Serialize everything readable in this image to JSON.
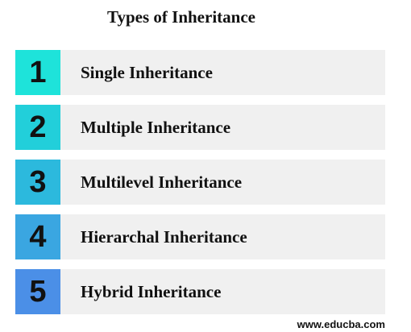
{
  "header": {
    "title": "Types of Inheritance"
  },
  "items": [
    {
      "number": "1",
      "label": "Single Inheritance",
      "color": "#1ee3da"
    },
    {
      "number": "2",
      "label": "Multiple Inheritance",
      "color": "#22cfda"
    },
    {
      "number": "3",
      "label": "Multilevel Inheritance",
      "color": "#2cb9dd"
    },
    {
      "number": "4",
      "label": "Hierarchal Inheritance",
      "color": "#3aa6e1"
    },
    {
      "number": "5",
      "label": "Hybrid Inheritance",
      "color": "#4b8fe7"
    }
  ],
  "footer": {
    "text": "www.educba.com"
  }
}
